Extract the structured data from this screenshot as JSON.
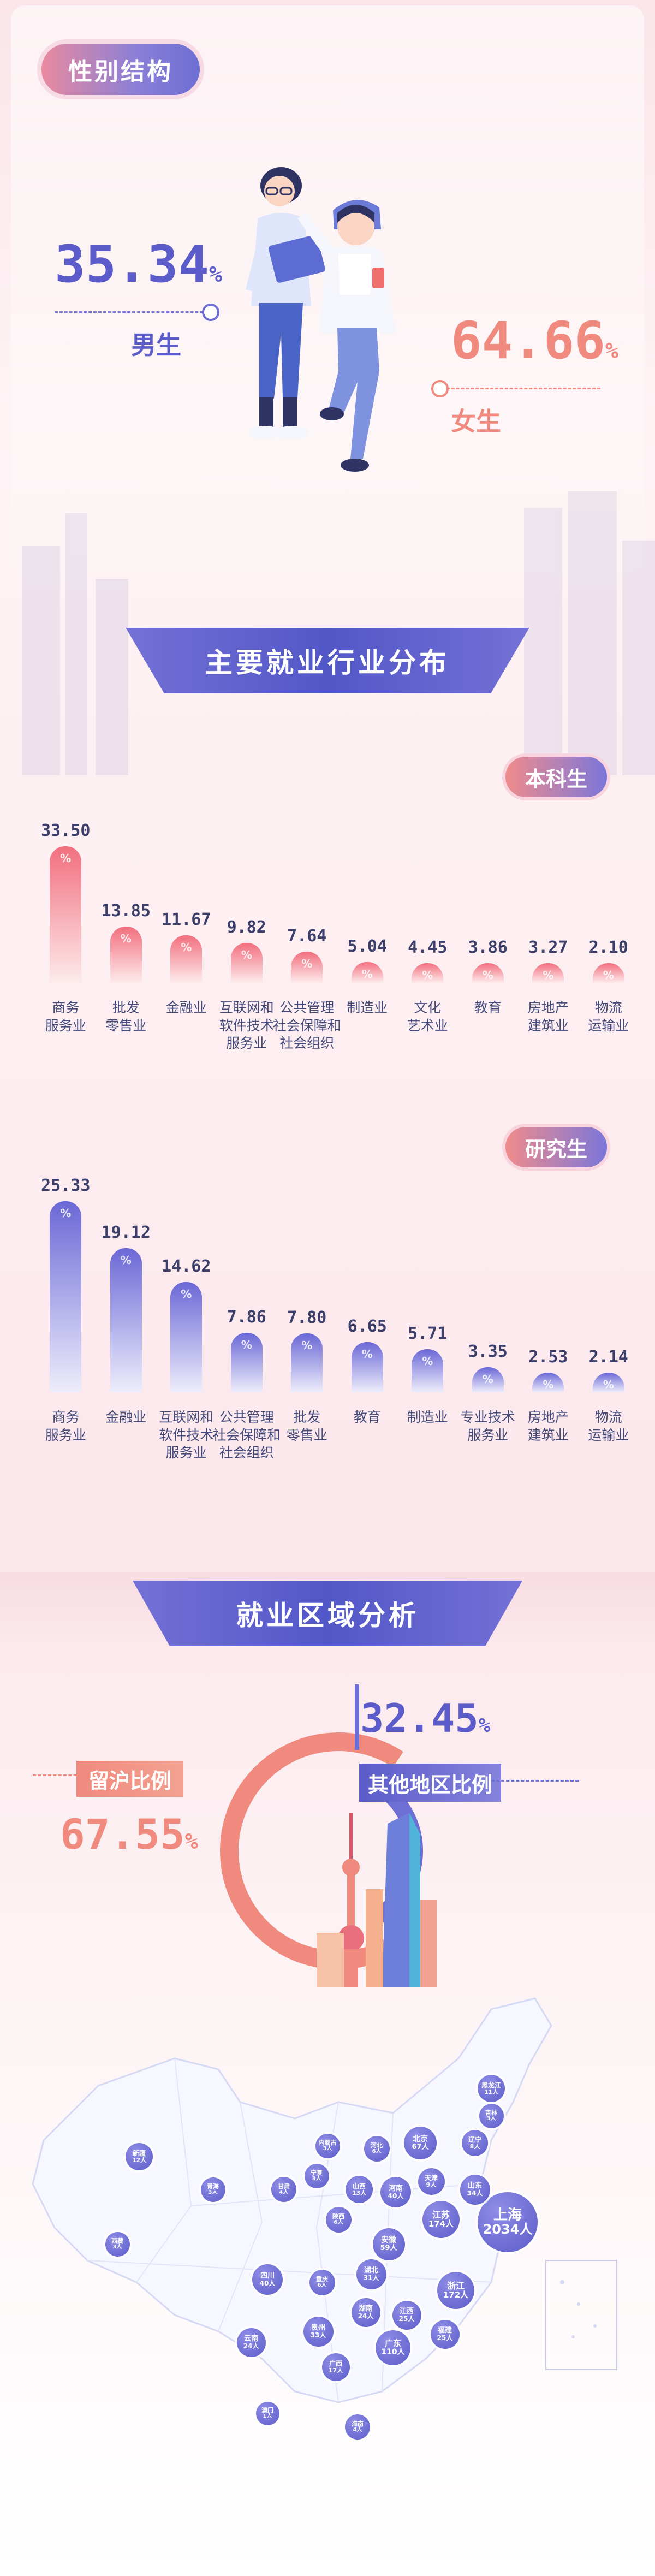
{
  "gender": {
    "title": "性别结构",
    "male_pct": "35.34",
    "male_label": "男生",
    "female_pct": "64.66",
    "female_label": "女生",
    "pct_sign": "%"
  },
  "industry": {
    "title": "主要就业行业分布",
    "undergrad_tag": "本科生",
    "grad_tag": "研究生"
  },
  "region": {
    "title": "就业区域分析",
    "other_pct": "32.45",
    "other_label": "其他地区比例",
    "local_label": "留沪比例",
    "local_pct": "67.55",
    "pct_sign": "%"
  },
  "chart_data": [
    {
      "type": "bar",
      "title": "本科生",
      "unit": "%",
      "categories": [
        "商务服务业",
        "批发零售业",
        "金融业",
        "互联网和软件技术服务业",
        "公共管理社会保障和社会组织",
        "制造业",
        "文化艺术业",
        "教育",
        "房地产建筑业",
        "物流运输业"
      ],
      "category_lines": [
        [
          "商务",
          "服务业"
        ],
        [
          "批发",
          "零售业"
        ],
        [
          "金融业"
        ],
        [
          "互联网和",
          "软件技术",
          "服务业"
        ],
        [
          "公共管理",
          "社会保障和",
          "社会组织"
        ],
        [
          "制造业"
        ],
        [
          "文化",
          "艺术业"
        ],
        [
          "教育"
        ],
        [
          "房地产",
          "建筑业"
        ],
        [
          "物流",
          "运输业"
        ]
      ],
      "values": [
        33.5,
        13.85,
        11.67,
        9.82,
        7.64,
        5.04,
        4.45,
        3.86,
        3.27,
        2.1
      ],
      "labels": [
        "33.50",
        "13.85",
        "11.67",
        "9.82",
        "7.64",
        "5.04",
        "4.45",
        "3.86",
        "3.27",
        "2.10"
      ],
      "colors": [
        "#f26f7e",
        "#fdebec"
      ]
    },
    {
      "type": "bar",
      "title": "研究生",
      "unit": "%",
      "categories": [
        "商务服务业",
        "金融业",
        "互联网和软件技术服务业",
        "公共管理社会保障和社会组织",
        "批发零售业",
        "教育",
        "制造业",
        "专业技术服务业",
        "房地产建筑业",
        "物流运输业"
      ],
      "category_lines": [
        [
          "商务",
          "服务业"
        ],
        [
          "金融业"
        ],
        [
          "互联网和",
          "软件技术",
          "服务业"
        ],
        [
          "公共管理",
          "社会保障和",
          "社会组织"
        ],
        [
          "批发",
          "零售业"
        ],
        [
          "教育"
        ],
        [
          "制造业"
        ],
        [
          "专业技术",
          "服务业"
        ],
        [
          "房地产",
          "建筑业"
        ],
        [
          "物流",
          "运输业"
        ]
      ],
      "values": [
        25.33,
        19.12,
        14.62,
        7.86,
        7.8,
        6.65,
        5.71,
        3.35,
        2.53,
        2.14
      ],
      "labels": [
        "25.33",
        "19.12",
        "14.62",
        "7.86",
        "7.80",
        "6.65",
        "5.71",
        "3.35",
        "2.53",
        "2.14"
      ],
      "colors": [
        "#6b68d6",
        "#eeedfb"
      ]
    },
    {
      "type": "pie",
      "title": "就业区域分析",
      "categories": [
        "留沪比例",
        "其他地区比例"
      ],
      "values": [
        67.55,
        32.45
      ],
      "colors": [
        "#f08a7e",
        "#6d6fd4"
      ]
    },
    {
      "type": "map",
      "title": "就业区域分析",
      "unit": "人",
      "regions": [
        {
          "name": "上海",
          "value": 2034
        },
        {
          "name": "江苏",
          "value": 174
        },
        {
          "name": "浙江",
          "value": 172
        },
        {
          "name": "广东",
          "value": 110
        },
        {
          "name": "安徽",
          "value": 59
        },
        {
          "name": "四川",
          "value": 40
        },
        {
          "name": "河南",
          "value": 40
        },
        {
          "name": "山东",
          "value": 34
        },
        {
          "name": "贵州",
          "value": 33
        },
        {
          "name": "湖北",
          "value": 31
        },
        {
          "name": "江西",
          "value": 25
        },
        {
          "name": "福建",
          "value": 25
        },
        {
          "name": "云南",
          "value": 24
        },
        {
          "name": "湖南",
          "value": 24
        },
        {
          "name": "广西",
          "value": 17
        },
        {
          "name": "北京",
          "value": 67
        },
        {
          "name": "新疆",
          "value": 12
        },
        {
          "name": "山西",
          "value": 13
        },
        {
          "name": "黑龙江",
          "value": 11
        },
        {
          "name": "天津",
          "value": 9
        },
        {
          "name": "辽宁",
          "value": 8
        },
        {
          "name": "河北",
          "value": 6
        },
        {
          "name": "陕西",
          "value": 6
        },
        {
          "name": "重庆",
          "value": 6
        },
        {
          "name": "甘肃",
          "value": 4
        },
        {
          "name": "海南",
          "value": 4
        },
        {
          "name": "吉林",
          "value": 3
        },
        {
          "name": "内蒙古",
          "value": 3
        },
        {
          "name": "青海",
          "value": 3
        },
        {
          "name": "西藏",
          "value": 3
        },
        {
          "name": "宁夏",
          "value": 3
        },
        {
          "name": "澳门",
          "value": 1
        }
      ]
    }
  ]
}
